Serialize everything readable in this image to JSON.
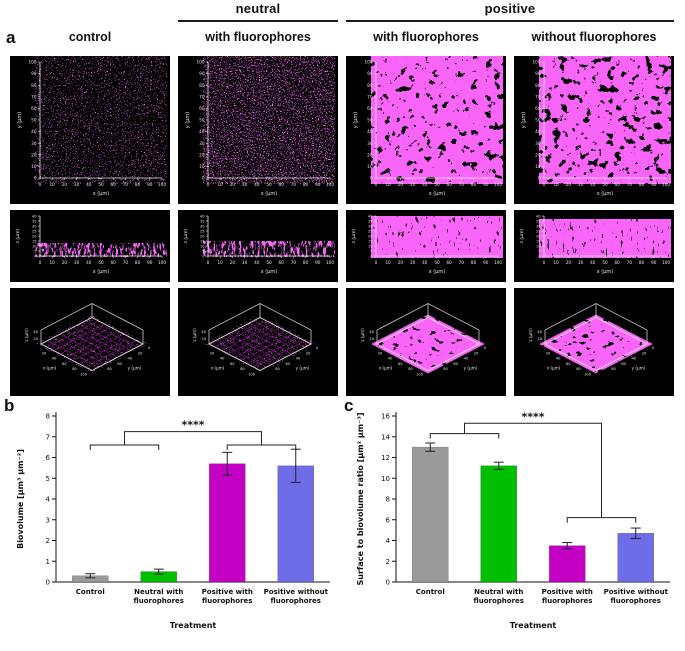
{
  "colors": {
    "biofilm_magenta": "#f021f0",
    "axis_white": "#e8e8e8",
    "bar_gray": "#9a9a9a",
    "bar_green": "#00be00",
    "bar_magenta": "#c400c4",
    "bar_blue": "#6d6de8"
  },
  "microscopy": {
    "panel_label": "a",
    "group_headers": [
      {
        "label": "neutral"
      },
      {
        "label": "positive"
      }
    ],
    "columns": [
      {
        "title": "control",
        "condition": "sparse"
      },
      {
        "title": "with fluorophores",
        "condition": "sparse"
      },
      {
        "title": "with fluorophores",
        "condition": "dense"
      },
      {
        "title": "without fluorophores",
        "condition": "dense"
      }
    ],
    "relative_thickness": [
      0.3,
      0.34,
      0.95,
      0.88
    ],
    "top_axis": {
      "x_label": "x (µm)",
      "y_label": "y (µm)",
      "x_ticks": [
        0,
        10,
        20,
        30,
        40,
        50,
        60,
        70,
        80,
        90,
        100
      ],
      "y_ticks": [
        0,
        10,
        20,
        30,
        40,
        50,
        60,
        70,
        80,
        90,
        100
      ]
    },
    "side_axis": {
      "x_label": "x (µm)",
      "z_label": "z (µm)",
      "x_ticks": [
        0,
        10,
        20,
        30,
        40,
        50,
        60,
        70,
        80,
        90,
        100
      ],
      "z_ticks": [
        0,
        5,
        10,
        15,
        20,
        25,
        30,
        35,
        40
      ]
    },
    "iso_axis": {
      "x_label": "x (µm)",
      "y_label": "y (µm)",
      "z_label": "z (µm)",
      "z_ticks": [
        20,
        40
      ],
      "x_edge_ticks": [
        20,
        40,
        60,
        80,
        100
      ],
      "y_edge_ticks": [
        80,
        60,
        40,
        20,
        0
      ]
    }
  },
  "charts": {
    "b_label": "b",
    "c_label": "c"
  },
  "chart_data": [
    {
      "id": "b",
      "type": "bar",
      "categories": [
        [
          "Control"
        ],
        [
          "Neutral with",
          "fluorophores"
        ],
        [
          "Positive with",
          "fluorophores"
        ],
        [
          "Positive without",
          "fluorophores"
        ]
      ],
      "values": [
        0.3,
        0.5,
        5.7,
        5.6
      ],
      "errors": [
        0.1,
        0.12,
        0.55,
        0.8
      ],
      "colors": [
        "#9a9a9a",
        "#00be00",
        "#c400c4",
        "#6d6de8"
      ],
      "ylabel": "Biovolume [µm³ µm⁻²]",
      "xlabel": "Treatment",
      "ylim": [
        0,
        8
      ],
      "yticks": [
        0,
        1,
        2,
        3,
        4,
        5,
        6,
        7,
        8
      ],
      "grid": false,
      "significance": {
        "label": "****",
        "top": 7.25,
        "left_level": 6.6,
        "right_level": 6.6,
        "left_pair": [
          0,
          1
        ],
        "right_pair": [
          2,
          3
        ]
      }
    },
    {
      "id": "c",
      "type": "bar",
      "categories": [
        [
          "Control"
        ],
        [
          "Neutral with",
          "fluorophores"
        ],
        [
          "Positive with",
          "fluorophores"
        ],
        [
          "Positive without",
          "fluorophores"
        ]
      ],
      "values": [
        13.0,
        11.2,
        3.5,
        4.7
      ],
      "errors": [
        0.4,
        0.35,
        0.3,
        0.5
      ],
      "colors": [
        "#9a9a9a",
        "#00be00",
        "#c400c4",
        "#6d6de8"
      ],
      "ylabel": "Surface to biovolume ratio [µm² µm⁻³]",
      "xlabel": "Treatment",
      "ylim": [
        0,
        16
      ],
      "yticks": [
        0,
        2,
        4,
        6,
        8,
        10,
        12,
        14,
        16
      ],
      "grid": false,
      "significance": {
        "label": "****",
        "top": 15.3,
        "left_level": 14.3,
        "right_level": 6.2,
        "left_pair": [
          0,
          1
        ],
        "right_pair": [
          2,
          3
        ]
      }
    }
  ]
}
